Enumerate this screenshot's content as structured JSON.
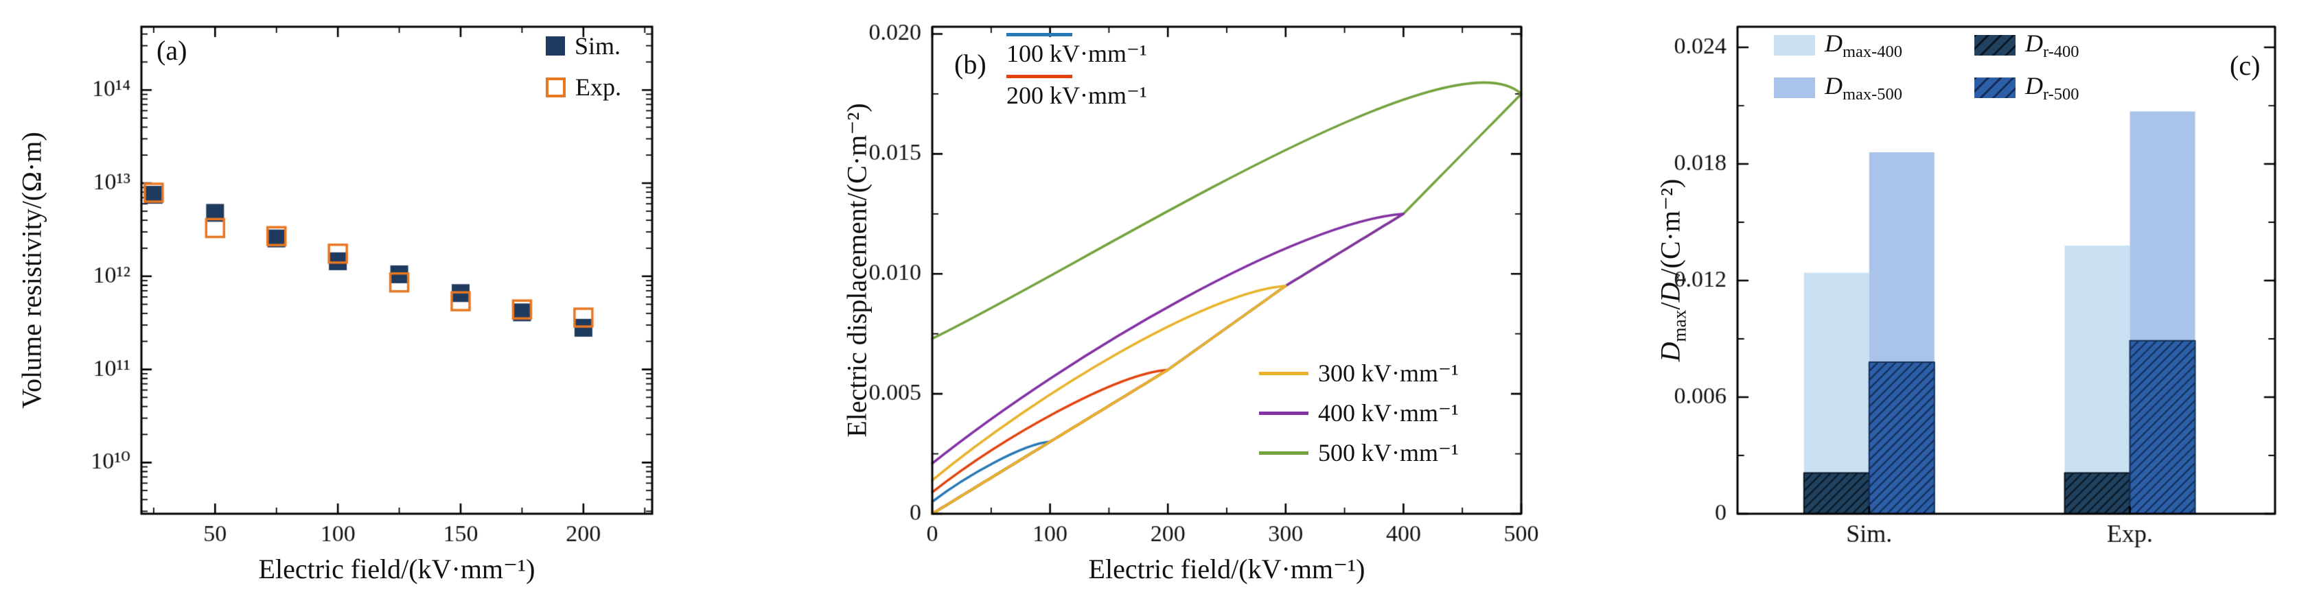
{
  "figure": {
    "background": "#ffffff"
  },
  "chart_data": [
    {
      "type": "scatter",
      "panel": "(a)",
      "xlabel": "Electric field/(kV·mm⁻¹)",
      "ylabel": "Volume resistivity/(Ω·m)",
      "xlim": [
        20,
        228
      ],
      "x_ticks": [
        50,
        100,
        150,
        200
      ],
      "x_minor_ticks": [
        25,
        75,
        125,
        175,
        225
      ],
      "y_scale": "log",
      "ylim_exp": [
        9.45,
        14.68
      ],
      "y_ticks_exp": [
        10,
        11,
        12,
        13,
        14
      ],
      "y_tick_labels": [
        "10¹⁰",
        "10¹¹",
        "10¹²",
        "10¹³",
        "10¹⁴"
      ],
      "x": [
        25,
        50,
        75,
        100,
        125,
        150,
        175,
        200
      ],
      "series": [
        {
          "name": "Sim.",
          "marker": "filled-square",
          "color": "#1f3a5f",
          "values": [
            7500000000000.0,
            4800000000000.0,
            2550000000000.0,
            1450000000000.0,
            1050000000000.0,
            660000000000.0,
            410000000000.0,
            280000000000.0
          ]
        },
        {
          "name": "Exp.",
          "marker": "open-square",
          "color": "#e87722",
          "values": [
            7900000000000.0,
            3300000000000.0,
            2700000000000.0,
            1750000000000.0,
            860000000000.0,
            540000000000.0,
            440000000000.0,
            360000000000.0
          ]
        }
      ],
      "legend_position": "upper right"
    },
    {
      "type": "line",
      "panel": "(b)",
      "xlabel": "Electric field/(kV·mm⁻¹)",
      "ylabel": "Electric displacement/(C·m⁻²)",
      "xlim": [
        0,
        500
      ],
      "ylim": [
        0,
        0.0203
      ],
      "x_ticks": [
        0,
        100,
        200,
        300,
        400,
        500
      ],
      "x_minor_step": 50,
      "y_ticks": [
        0,
        0.005,
        0.01,
        0.015,
        0.02
      ],
      "y_tick_labels": [
        "0",
        "0.005",
        "0.010",
        "0.015",
        "0.020"
      ],
      "y_minor_step": 0.0025,
      "series": [
        {
          "name": "100 kV·mm⁻¹",
          "color": "#2878b5",
          "emax": 100,
          "dmax": 0.003,
          "dr": 0.0005
        },
        {
          "name": "200 kV·mm⁻¹",
          "color": "#e1440f",
          "emax": 200,
          "dmax": 0.006,
          "dr": 0.0009
        },
        {
          "name": "300 kV·mm⁻¹",
          "color": "#e8b32a",
          "emax": 300,
          "dmax": 0.0095,
          "dr": 0.0014
        },
        {
          "name": "400 kV·mm⁻¹",
          "color": "#8333a3",
          "emax": 400,
          "dmax": 0.0125,
          "dr": 0.0021
        },
        {
          "name": "500 kV·mm⁻¹",
          "color": "#74a33e",
          "emax": 500,
          "dmax": 0.0175,
          "dr": 0.0073,
          "tip_peak": 0.018
        }
      ]
    },
    {
      "type": "bar",
      "panel": "(c)",
      "ylabel_parts": {
        "sym": "D",
        "sub_max": "max",
        "sub_r": "r",
        "sep": "/",
        "unit": "/(C·m⁻²)"
      },
      "categories": [
        "Sim.",
        "Exp."
      ],
      "ylim": [
        0,
        0.02506
      ],
      "y_ticks": [
        0,
        0.006,
        0.012,
        0.018,
        0.024
      ],
      "y_tick_labels": [
        "0",
        "0.006",
        "0.012",
        "0.018",
        "0.024"
      ],
      "y_minor_step": 0.003,
      "series": [
        {
          "label_base": "D",
          "label_sub": "max-400",
          "color": "#c9e0f2",
          "hatch": false,
          "values": [
            0.0124,
            0.0138
          ]
        },
        {
          "label_base": "D",
          "label_sub": "max-500",
          "color": "#a9c3ea",
          "hatch": false,
          "values": [
            0.0186,
            0.0207
          ]
        },
        {
          "label_base": "D",
          "label_sub": "r-400",
          "color": "#21415f",
          "hatch": true,
          "hatch_color": "#0a1726",
          "values": [
            0.0021,
            0.0021
          ]
        },
        {
          "label_base": "D",
          "label_sub": "r-500",
          "color": "#2d5fa8",
          "hatch": true,
          "hatch_color": "#132f57",
          "values": [
            0.0078,
            0.0089
          ]
        }
      ]
    }
  ]
}
